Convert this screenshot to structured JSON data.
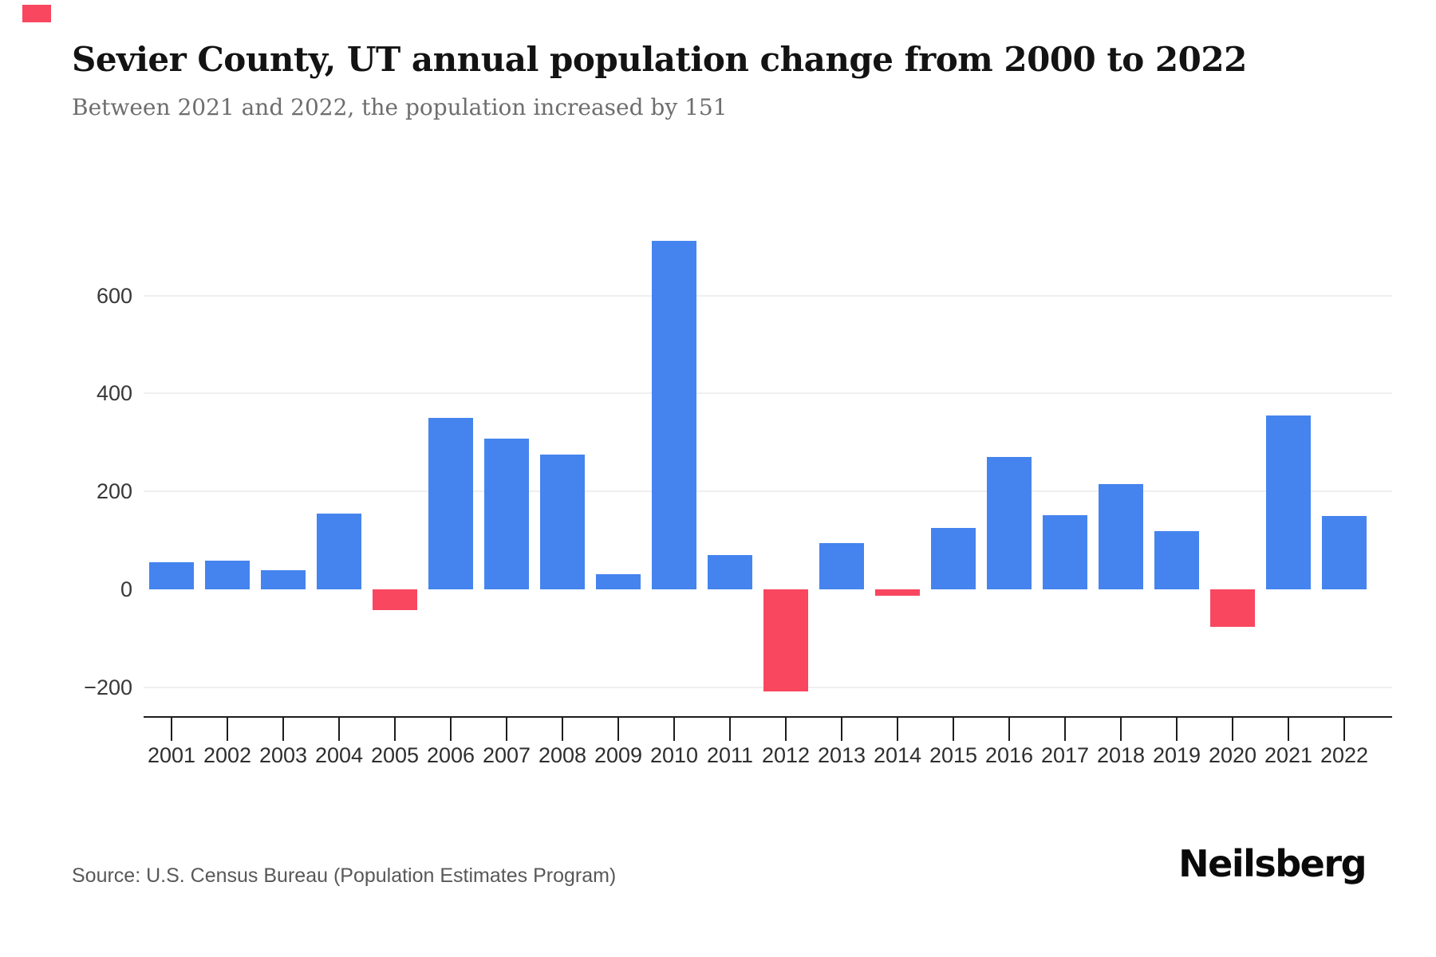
{
  "header": {
    "title": "Sevier County, UT annual population change from 2000 to 2022",
    "subtitle": "Between 2021 and 2022, the population increased by 151"
  },
  "footer": {
    "source": "Source: U.S. Census Bureau (Population Estimates Program)",
    "brand": "Neilsberg"
  },
  "colors": {
    "positive_bar": "#4584EE",
    "negative_bar": "#F8475E",
    "grid": "#EFEFEF",
    "axis": "#1D1D1D",
    "corner_mark": "#F8475E"
  },
  "chart_data": {
    "type": "bar",
    "title": "Sevier County, UT annual population change from 2000 to 2022",
    "subtitle": "Between 2021 and 2022, the population increased by 151",
    "xlabel": "",
    "ylabel": "",
    "categories": [
      "2001",
      "2002",
      "2003",
      "2004",
      "2005",
      "2006",
      "2007",
      "2008",
      "2009",
      "2010",
      "2011",
      "2012",
      "2013",
      "2014",
      "2015",
      "2016",
      "2017",
      "2018",
      "2019",
      "2020",
      "2021",
      "2022"
    ],
    "values": [
      55,
      59,
      39,
      155,
      -42,
      351,
      308,
      275,
      31,
      711,
      70,
      -207,
      95,
      -12,
      125,
      271,
      152,
      216,
      119,
      -76,
      356,
      151
    ],
    "yticks": [
      600,
      400,
      200,
      0,
      -200
    ],
    "ytick_labels": [
      "600",
      "400",
      "200",
      "0",
      "−200"
    ],
    "gridline_values": [
      600,
      400,
      200,
      -200
    ],
    "ylim": [
      -260,
      815
    ],
    "grid": true,
    "legend": false,
    "bar_color_positive": "#4584EE",
    "bar_color_negative": "#F8475E"
  }
}
